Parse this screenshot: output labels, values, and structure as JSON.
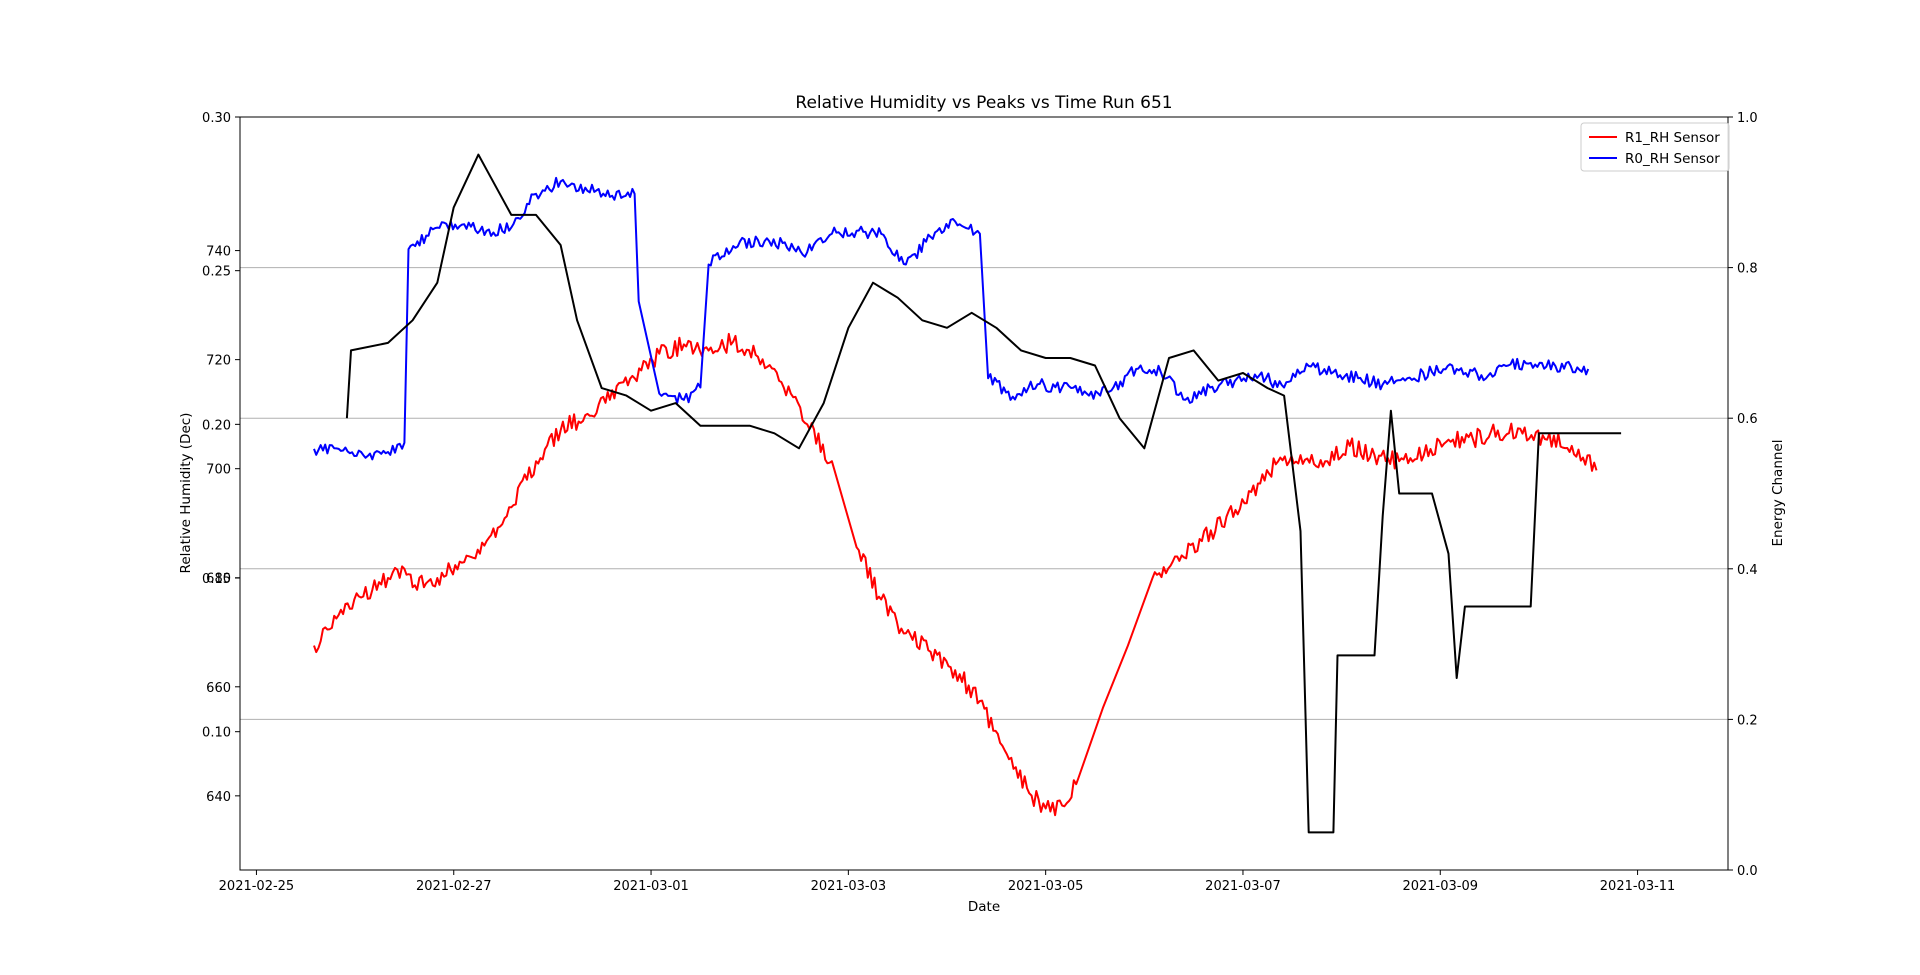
{
  "chart_data": {
    "type": "line",
    "title": "Relative Humidity vs Peaks vs Time Run 651",
    "xlabel": "Date",
    "ylabel_left": "Relative Humidity (Dec)",
    "ylabel_right": "Energy Channel",
    "x_ticks": [
      "2021-02-25",
      "2021-02-27",
      "2021-03-01",
      "2021-03-03",
      "2021-03-05",
      "2021-03-07",
      "2021-03-09",
      "2021-03-11"
    ],
    "xlim": [
      "2021-02-24T20:00",
      "2021-03-11T22:00"
    ],
    "axes": {
      "left_rh": {
        "ticks": [
          "0.10",
          "0.15",
          "0.20",
          "0.25",
          "0.30"
        ],
        "ylim": [
          0.055,
          0.3
        ]
      },
      "left_peaks": {
        "ticks": [
          "640",
          "660",
          "680",
          "700",
          "720",
          "740"
        ],
        "ylim": [
          626.4,
          764.5
        ]
      },
      "right": {
        "ticks": [
          "0.0",
          "0.2",
          "0.4",
          "0.6",
          "0.8",
          "1.0"
        ],
        "ylim": [
          0.0,
          1.0
        ]
      }
    },
    "grid": "horizontal lines at right-axis major ticks",
    "legend": {
      "location": "upper right",
      "entries": [
        "R1_RH Sensor",
        "R0_RH Sensor"
      ]
    },
    "series": [
      {
        "name": "R1_RH Sensor",
        "axis": "left_rh",
        "color": "#ff0000",
        "noise": 0.003,
        "points": [
          [
            "2021-02-25T14:00",
            0.128
          ],
          [
            "2021-02-25T20:00",
            0.138
          ],
          [
            "2021-02-26T02:00",
            0.144
          ],
          [
            "2021-02-26T08:00",
            0.15
          ],
          [
            "2021-02-26T12:00",
            0.153
          ],
          [
            "2021-02-26T14:00",
            0.147
          ],
          [
            "2021-02-26T20:00",
            0.15
          ],
          [
            "2021-02-27T02:00",
            0.155
          ],
          [
            "2021-02-27T08:00",
            0.162
          ],
          [
            "2021-02-27T14:00",
            0.173
          ],
          [
            "2021-02-27T20:00",
            0.188
          ],
          [
            "2021-02-28T02:00",
            0.198
          ],
          [
            "2021-02-28T08:00",
            0.203
          ],
          [
            "2021-02-28T14:00",
            0.208
          ],
          [
            "2021-02-28T20:00",
            0.215
          ],
          [
            "2021-03-01T02:00",
            0.223
          ],
          [
            "2021-03-01T08:00",
            0.226
          ],
          [
            "2021-03-01T14:00",
            0.224
          ],
          [
            "2021-03-01T20:00",
            0.227
          ],
          [
            "2021-03-02T02:00",
            0.222
          ],
          [
            "2021-03-02T06:00",
            0.218
          ],
          [
            "2021-03-02T10:00",
            0.21
          ],
          [
            "2021-03-02T14:00",
            0.2
          ],
          [
            "2021-03-02T20:00",
            0.188
          ],
          [
            "2021-03-03T02:00",
            0.16
          ],
          [
            "2021-03-03T08:00",
            0.143
          ],
          [
            "2021-03-03T14:00",
            0.132
          ],
          [
            "2021-03-03T20:00",
            0.126
          ],
          [
            "2021-03-04T02:00",
            0.12
          ],
          [
            "2021-03-04T08:00",
            0.11
          ],
          [
            "2021-03-04T14:00",
            0.094
          ],
          [
            "2021-03-04T20:00",
            0.08
          ],
          [
            "2021-03-05T00:00",
            0.075
          ],
          [
            "2021-03-05T04:00",
            0.076
          ],
          [
            "2021-03-05T08:00",
            0.085
          ],
          [
            "2021-03-05T14:00",
            0.108
          ],
          [
            "2021-03-05T20:00",
            0.128
          ],
          [
            "2021-03-06T02:00",
            0.15
          ],
          [
            "2021-03-06T08:00",
            0.157
          ],
          [
            "2021-03-06T14:00",
            0.162
          ],
          [
            "2021-03-06T20:00",
            0.17
          ],
          [
            "2021-03-07T02:00",
            0.178
          ],
          [
            "2021-03-07T08:00",
            0.187
          ],
          [
            "2021-03-07T14:00",
            0.19
          ],
          [
            "2021-03-07T20:00",
            0.188
          ],
          [
            "2021-03-08T02:00",
            0.193
          ],
          [
            "2021-03-08T08:00",
            0.19
          ],
          [
            "2021-03-08T14:00",
            0.188
          ],
          [
            "2021-03-08T20:00",
            0.19
          ],
          [
            "2021-03-09T02:00",
            0.195
          ],
          [
            "2021-03-09T08:00",
            0.195
          ],
          [
            "2021-03-09T14:00",
            0.198
          ],
          [
            "2021-03-09T20:00",
            0.197
          ],
          [
            "2021-03-10T02:00",
            0.195
          ],
          [
            "2021-03-10T08:00",
            0.193
          ],
          [
            "2021-03-10T14:00",
            0.185
          ]
        ]
      },
      {
        "name": "R0_RH Sensor",
        "axis": "left_rh",
        "color": "#0000ff",
        "noise": 0.002,
        "points": [
          [
            "2021-02-25T14:00",
            0.192
          ],
          [
            "2021-02-25T20:00",
            0.192
          ],
          [
            "2021-02-26T02:00",
            0.19
          ],
          [
            "2021-02-26T08:00",
            0.191
          ],
          [
            "2021-02-26T12:00",
            0.194
          ],
          [
            "2021-02-26T13:00",
            0.257
          ],
          [
            "2021-02-26T20:00",
            0.264
          ],
          [
            "2021-02-27T02:00",
            0.265
          ],
          [
            "2021-02-27T08:00",
            0.263
          ],
          [
            "2021-02-27T14:00",
            0.264
          ],
          [
            "2021-02-27T20:00",
            0.275
          ],
          [
            "2021-02-28T02:00",
            0.279
          ],
          [
            "2021-02-28T08:00",
            0.277
          ],
          [
            "2021-02-28T14:00",
            0.274
          ],
          [
            "2021-02-28T20:00",
            0.275
          ],
          [
            "2021-02-28T21:00",
            0.24
          ],
          [
            "2021-03-01T02:00",
            0.21
          ],
          [
            "2021-03-01T08:00",
            0.208
          ],
          [
            "2021-03-01T12:00",
            0.212
          ],
          [
            "2021-03-01T14:00",
            0.252
          ],
          [
            "2021-03-01T20:00",
            0.258
          ],
          [
            "2021-03-02T02:00",
            0.26
          ],
          [
            "2021-03-02T08:00",
            0.259
          ],
          [
            "2021-03-02T14:00",
            0.256
          ],
          [
            "2021-03-02T20:00",
            0.262
          ],
          [
            "2021-03-03T02:00",
            0.263
          ],
          [
            "2021-03-03T08:00",
            0.262
          ],
          [
            "2021-03-03T14:00",
            0.252
          ],
          [
            "2021-03-03T20:00",
            0.261
          ],
          [
            "2021-03-04T02:00",
            0.266
          ],
          [
            "2021-03-04T08:00",
            0.262
          ],
          [
            "2021-03-04T10:00",
            0.215
          ],
          [
            "2021-03-04T16:00",
            0.209
          ],
          [
            "2021-03-04T22:00",
            0.213
          ],
          [
            "2021-03-05T04:00",
            0.212
          ],
          [
            "2021-03-05T10:00",
            0.21
          ],
          [
            "2021-03-05T16:00",
            0.211
          ],
          [
            "2021-03-05T22:00",
            0.218
          ],
          [
            "2021-03-06T04:00",
            0.217
          ],
          [
            "2021-03-06T10:00",
            0.208
          ],
          [
            "2021-03-06T16:00",
            0.212
          ],
          [
            "2021-03-06T22:00",
            0.214
          ],
          [
            "2021-03-07T04:00",
            0.216
          ],
          [
            "2021-03-07T10:00",
            0.212
          ],
          [
            "2021-03-07T16:00",
            0.219
          ],
          [
            "2021-03-07T22:00",
            0.217
          ],
          [
            "2021-03-08T04:00",
            0.215
          ],
          [
            "2021-03-08T10:00",
            0.213
          ],
          [
            "2021-03-08T16:00",
            0.215
          ],
          [
            "2021-03-08T22:00",
            0.217
          ],
          [
            "2021-03-09T04:00",
            0.218
          ],
          [
            "2021-03-09T10:00",
            0.216
          ],
          [
            "2021-03-09T16:00",
            0.219
          ],
          [
            "2021-03-09T22:00",
            0.22
          ],
          [
            "2021-03-10T04:00",
            0.219
          ],
          [
            "2021-03-10T12:00",
            0.218
          ]
        ]
      },
      {
        "axis": "right",
        "color": "#000000",
        "noise": 0,
        "points": [
          [
            "2021-02-25T22:00",
            0.6
          ],
          [
            "2021-02-25T23:00",
            0.69
          ],
          [
            "2021-02-26T08:00",
            0.7
          ],
          [
            "2021-02-26T14:00",
            0.73
          ],
          [
            "2021-02-26T20:00",
            0.78
          ],
          [
            "2021-02-27T00:00",
            0.88
          ],
          [
            "2021-02-27T06:00",
            0.95
          ],
          [
            "2021-02-27T08:00",
            0.93
          ],
          [
            "2021-02-27T14:00",
            0.87
          ],
          [
            "2021-02-27T20:00",
            0.87
          ],
          [
            "2021-02-28T02:00",
            0.83
          ],
          [
            "2021-02-28T06:00",
            0.73
          ],
          [
            "2021-02-28T12:00",
            0.64
          ],
          [
            "2021-02-28T18:00",
            0.63
          ],
          [
            "2021-03-01T00:00",
            0.61
          ],
          [
            "2021-03-01T06:00",
            0.62
          ],
          [
            "2021-03-01T12:00",
            0.59
          ],
          [
            "2021-03-01T18:00",
            0.59
          ],
          [
            "2021-03-02T00:00",
            0.59
          ],
          [
            "2021-03-02T06:00",
            0.58
          ],
          [
            "2021-03-02T12:00",
            0.56
          ],
          [
            "2021-03-02T18:00",
            0.62
          ],
          [
            "2021-03-03T00:00",
            0.72
          ],
          [
            "2021-03-03T06:00",
            0.78
          ],
          [
            "2021-03-03T12:00",
            0.76
          ],
          [
            "2021-03-03T18:00",
            0.73
          ],
          [
            "2021-03-04T00:00",
            0.72
          ],
          [
            "2021-03-04T06:00",
            0.74
          ],
          [
            "2021-03-04T12:00",
            0.72
          ],
          [
            "2021-03-04T18:00",
            0.69
          ],
          [
            "2021-03-05T00:00",
            0.68
          ],
          [
            "2021-03-05T06:00",
            0.68
          ],
          [
            "2021-03-05T12:00",
            0.67
          ],
          [
            "2021-03-05T18:00",
            0.6
          ],
          [
            "2021-03-06T00:00",
            0.56
          ],
          [
            "2021-03-06T06:00",
            0.68
          ],
          [
            "2021-03-06T12:00",
            0.69
          ],
          [
            "2021-03-06T18:00",
            0.65
          ],
          [
            "2021-03-07T00:00",
            0.66
          ],
          [
            "2021-03-07T06:00",
            0.64
          ],
          [
            "2021-03-07T10:00",
            0.63
          ],
          [
            "2021-03-07T14:00",
            0.45
          ],
          [
            "2021-03-07T16:00",
            0.05
          ],
          [
            "2021-03-07T22:00",
            0.05
          ],
          [
            "2021-03-07T23:00",
            0.285
          ],
          [
            "2021-03-08T08:00",
            0.285
          ],
          [
            "2021-03-08T10:00",
            0.47
          ],
          [
            "2021-03-08T12:00",
            0.61
          ],
          [
            "2021-03-08T14:00",
            0.5
          ],
          [
            "2021-03-08T22:00",
            0.5
          ],
          [
            "2021-03-09T02:00",
            0.42
          ],
          [
            "2021-03-09T04:00",
            0.255
          ],
          [
            "2021-03-09T06:00",
            0.35
          ],
          [
            "2021-03-09T22:00",
            0.35
          ],
          [
            "2021-03-10T00:00",
            0.58
          ],
          [
            "2021-03-10T20:00",
            0.58
          ]
        ]
      }
    ]
  }
}
